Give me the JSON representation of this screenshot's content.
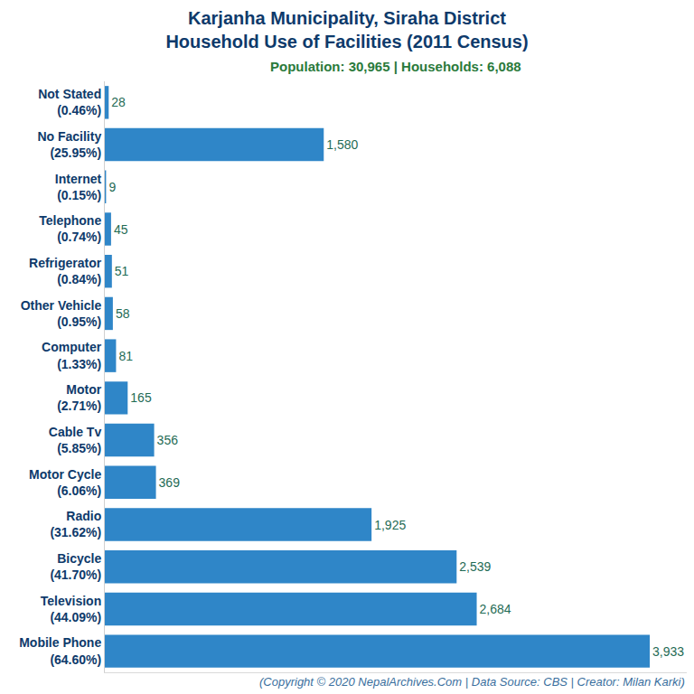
{
  "chart_data": {
    "type": "bar",
    "orientation": "horizontal",
    "title": "Karjanha Municipality, Siraha District\nHousehold Use of Facilities (2011 Census)",
    "subtitle": "Population: 30,965 | Households: 6,088",
    "annotations": [
      "(Copyright © 2020 NepalArchives.Com | Data Source: CBS | Creator: Milan Karki)"
    ],
    "categories": [
      "Not Stated (0.46%)",
      "No Facility (25.95%)",
      "Internet (0.15%)",
      "Telephone (0.74%)",
      "Refrigerator (0.84%)",
      "Other Vehicle (0.95%)",
      "Computer (1.33%)",
      "Motor (2.71%)",
      "Cable Tv (5.85%)",
      "Motor Cycle (6.06%)",
      "Radio (31.62%)",
      "Bicycle (41.70%)",
      "Television (44.09%)",
      "Mobile Phone (64.60%)"
    ],
    "values": [
      28,
      1580,
      9,
      45,
      51,
      58,
      81,
      165,
      356,
      369,
      1925,
      2539,
      2684,
      3933
    ],
    "value_labels": [
      "28",
      "1,580",
      "9",
      "45",
      "51",
      "58",
      "81",
      "165",
      "356",
      "369",
      "1,925",
      "2,539",
      "2,684",
      "3,933"
    ],
    "color": "#2f86c8",
    "xlim": [
      0,
      4200
    ],
    "xticks": [],
    "grid": false,
    "data_labels": true,
    "tick_labels": "y"
  }
}
